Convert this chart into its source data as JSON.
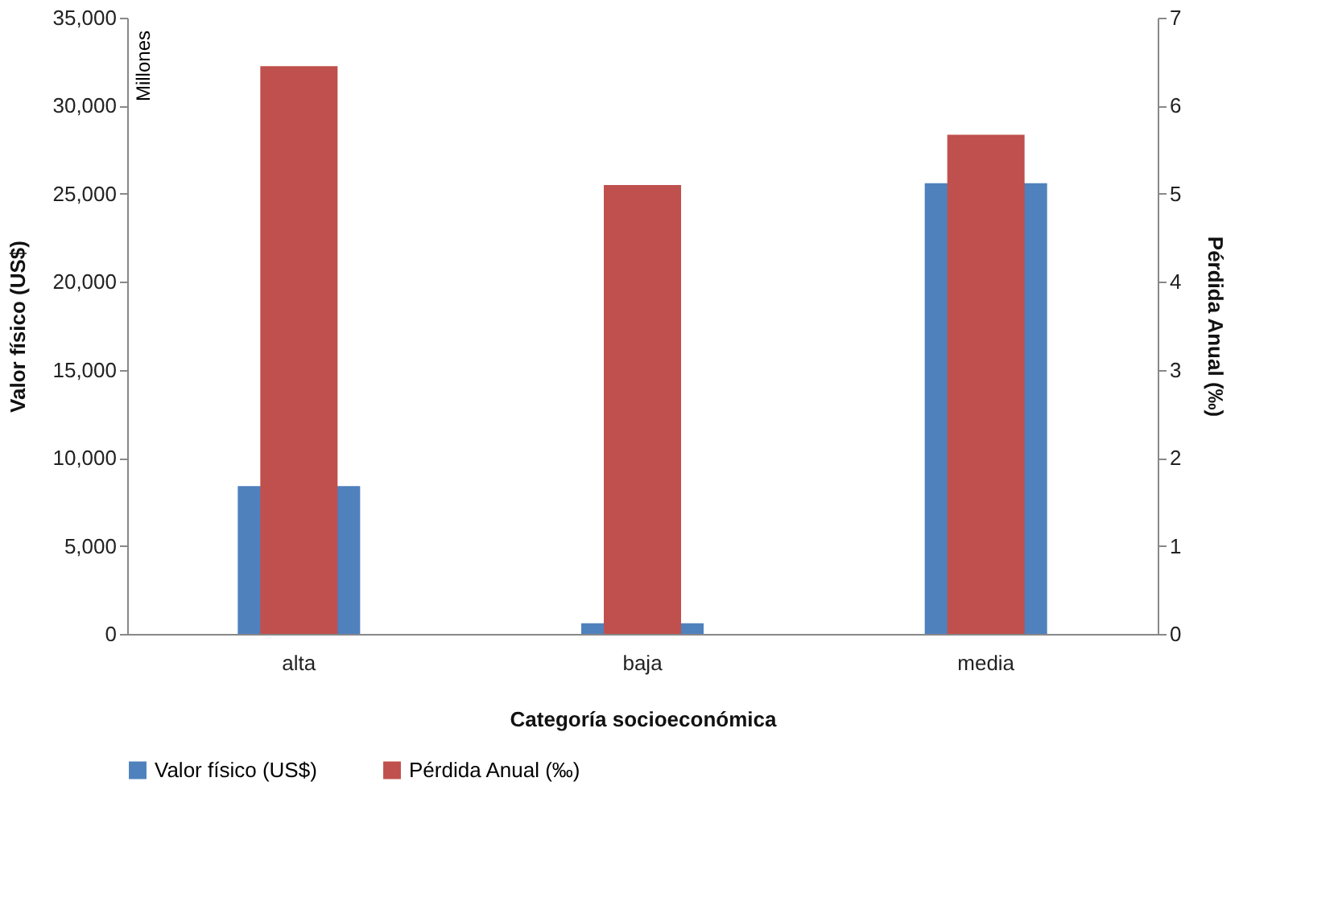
{
  "chart_data": {
    "type": "bar",
    "xlabel": "Categoría socioeconómica",
    "ylabel": "Valor físico (US$)",
    "y2label": "Pérdida Anual (‰)",
    "categories": [
      "alta",
      "baja",
      "media"
    ],
    "series": [
      {
        "name": "Valor físico (US$)",
        "color": "#4f81bd",
        "values": [
          8400,
          600,
          25600
        ]
      },
      {
        "name": "Pérdida Anual (‰)",
        "color": "#c0504d",
        "values": [
          6.45,
          5.1,
          5.67
        ],
        "axis": "y2"
      }
    ],
    "ylim": [
      0,
      35000
    ],
    "yticks": [
      0,
      {
        "value": 5000,
        "label": "5,000"
      },
      {
        "value": 10000,
        "label": "10,000"
      },
      {
        "value": 15000,
        "label": "15,000"
      },
      {
        "value": 20000,
        "label": "20,000"
      },
      {
        "value": 25000,
        "label": "25,000"
      },
      {
        "value": 30000,
        "label": "30,000"
      },
      {
        "value": 35000,
        "label": "35,000"
      }
    ],
    "y2lim": [
      0,
      7
    ],
    "y2ticks": [
      0,
      1,
      2,
      3,
      4,
      5,
      6,
      7
    ],
    "annotations": [
      "Millones"
    ],
    "grid": false,
    "legend": "bottom"
  }
}
